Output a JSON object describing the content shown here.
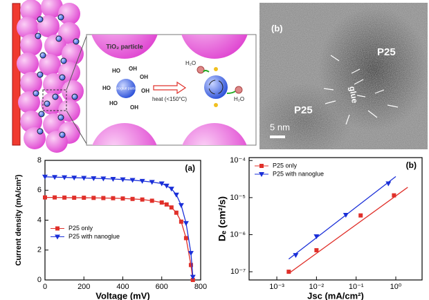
{
  "schematic": {
    "particle_label": "TiO₂ particle",
    "nanoglue_label": "nanoglue particle",
    "heat_label": "heat (<150°C)",
    "hydroxyl_labels": [
      "HO",
      "OH",
      "OH",
      "HO",
      "OH",
      "HO",
      "OH"
    ],
    "water_labels": [
      "H₂O",
      "H₂O"
    ]
  },
  "tem": {
    "panel_label": "(b)",
    "particle_labels": [
      "P25",
      "P25"
    ],
    "glue_label": "glue",
    "scale_label": "5 nm"
  },
  "chart_data": [
    {
      "type": "line",
      "panel_label": "(a)",
      "x_label": "Voltage (mV)",
      "y_label": "Current density (mA/cm²)",
      "x": [
        0,
        50,
        100,
        150,
        200,
        250,
        300,
        350,
        400,
        450,
        500,
        550,
        600,
        625,
        650,
        675,
        700,
        725,
        750,
        760
      ],
      "series": [
        {
          "name": "P25 only",
          "color": "#e0302a",
          "marker": "square",
          "values": [
            5.52,
            5.52,
            5.51,
            5.5,
            5.5,
            5.49,
            5.48,
            5.47,
            5.45,
            5.42,
            5.38,
            5.3,
            5.18,
            5.05,
            4.85,
            4.5,
            3.9,
            2.8,
            1.0,
            0
          ]
        },
        {
          "name": "P25 with nanoglue",
          "color": "#1a2fd8",
          "marker": "triangle-down",
          "values": [
            6.9,
            6.88,
            6.86,
            6.84,
            6.82,
            6.8,
            6.78,
            6.75,
            6.72,
            6.68,
            6.62,
            6.55,
            6.45,
            6.3,
            6.1,
            5.7,
            5.0,
            3.8,
            1.8,
            0.2
          ]
        }
      ],
      "xlim": [
        0,
        800
      ],
      "xticks": [
        0,
        200,
        400,
        600,
        800
      ],
      "ylim": [
        0,
        8
      ],
      "yticks": [
        0,
        2,
        4,
        6,
        8
      ],
      "legend": "center left"
    },
    {
      "type": "scatter",
      "panel_label": "(b)",
      "x_label": "Jsc (mA/cm²)",
      "y_label": "Dₑ (cm²/s)",
      "log_x": true,
      "log_y": true,
      "series": [
        {
          "name": "P25 only",
          "color": "#e0302a",
          "marker": "square",
          "x": [
            0.002,
            0.01,
            0.13,
            0.9
          ],
          "values": [
            1e-07,
            3.8e-07,
            3.3e-06,
            1.15e-05
          ],
          "fit": {
            "x": [
              0.002,
              2
            ],
            "y": [
              9e-08,
              1.9e-05
            ]
          }
        },
        {
          "name": "P25 with nanoglue",
          "color": "#1a2fd8",
          "marker": "triangle-down",
          "x": [
            0.003,
            0.01,
            0.055,
            0.65
          ],
          "values": [
            2.8e-07,
            9e-07,
            3.4e-06,
            2.4e-05
          ],
          "fit": {
            "x": [
              0.002,
              1
            ],
            "y": [
              2.2e-07,
              3.7e-05
            ]
          }
        }
      ],
      "xlim": [
        0.0002,
        4.6
      ],
      "xticks": [
        {
          "value": 0.001,
          "label": "10⁻³"
        },
        {
          "value": 0.01,
          "label": "10⁻²"
        },
        {
          "value": 0.1,
          "label": "10⁻¹"
        },
        {
          "value": 1,
          "label": "10⁰"
        }
      ],
      "ylim": [
        6e-08,
        0.00012
      ],
      "yticks": [
        {
          "value": 1e-07,
          "label": "10⁻⁷"
        },
        {
          "value": 1e-06,
          "label": "10⁻⁶"
        },
        {
          "value": 1e-05,
          "label": "10⁻⁵"
        },
        {
          "value": 0.0001,
          "label": "10⁻⁴"
        }
      ],
      "legend": "upper left"
    }
  ]
}
